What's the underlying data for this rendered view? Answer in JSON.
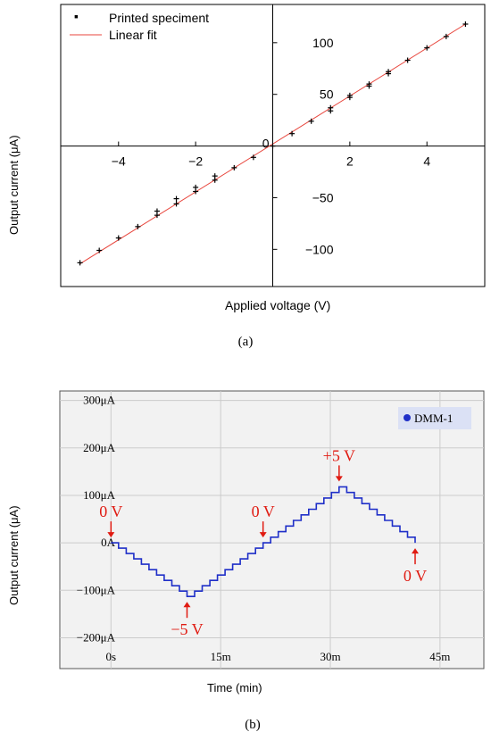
{
  "colors": {
    "fit_line": "#e8453c",
    "scatter": "#000000",
    "trace": "#1f2fc8",
    "annotation": "#e01b12",
    "plot_b_bg": "#f2f2f2",
    "legend_b_bg": "#dbe1f5",
    "grid": "#cccccc"
  },
  "caption_a": "(a)",
  "caption_b": "(b)",
  "chart_data": [
    {
      "type": "scatter",
      "xlabel": "Applied voltage (V)",
      "ylabel": "Output current (μA)",
      "xlim": [
        -5.5,
        5.5
      ],
      "ylim": [
        -136,
        137
      ],
      "xticks": [
        -4,
        -2,
        0,
        2,
        4
      ],
      "xtick_labels": [
        "−4",
        "−2",
        "0",
        "2",
        "4"
      ],
      "yticks": [
        -100,
        -50,
        0,
        50,
        100
      ],
      "ytick_labels": [
        "−100",
        "−50",
        "0",
        "50",
        "100"
      ],
      "axes_through_origin": true,
      "grid": false,
      "legend_position": "top-left",
      "legend": [
        "Printed speciment",
        "Linear fit"
      ],
      "series": [
        {
          "name": "Printed speciment",
          "kind": "points",
          "x": [
            -5,
            -4.5,
            -4,
            -3.5,
            -3,
            -3,
            -2.5,
            -2.5,
            -2,
            -2,
            -1.5,
            -1.5,
            -1,
            -0.5,
            0,
            0.5,
            1,
            1.5,
            1.5,
            2,
            2,
            2.5,
            2.5,
            3,
            3,
            3.5,
            4,
            4.5,
            5
          ],
          "y": [
            -113,
            -101,
            -89,
            -78,
            -63,
            -67,
            -51,
            -56,
            -40,
            -44,
            -29,
            -33,
            -21,
            -11,
            0,
            12,
            24,
            34,
            37,
            47,
            49,
            58,
            60,
            70,
            72,
            83,
            95,
            106,
            118
          ]
        },
        {
          "name": "Linear fit",
          "kind": "line",
          "x": [
            -5,
            5
          ],
          "y": [
            -114,
            118
          ]
        }
      ]
    },
    {
      "type": "line",
      "xlabel": "Time (min)",
      "ylabel": "Output current (μA)",
      "xlim": [
        -7,
        51
      ],
      "ylim": [
        -265,
        320
      ],
      "xticks": [
        0,
        15,
        30,
        45
      ],
      "xtick_labels": [
        "0s",
        "15m",
        "30m",
        "45m"
      ],
      "yticks": [
        -200,
        -100,
        0,
        100,
        200,
        300
      ],
      "ytick_labels": [
        "−200μA",
        "−100μA",
        "0A",
        "100μA",
        "200μA",
        "300μA"
      ],
      "grid": true,
      "legend_position": "top-right",
      "legend": [
        "DMM-1"
      ],
      "series": [
        {
          "name": "DMM-1",
          "kind": "staircase",
          "step_duration": 1.0,
          "x": [
            0,
            10.4,
            20.8,
            31.2,
            41.6
          ],
          "y": [
            0,
            -113,
            0,
            118,
            0
          ],
          "steps_per_segment": 10
        }
      ],
      "annotations": [
        {
          "text": "0 V",
          "x": 0,
          "y": 0,
          "label_pos": "above"
        },
        {
          "text": "−5 V",
          "x": 10.4,
          "y": -113,
          "label_pos": "below"
        },
        {
          "text": "0 V",
          "x": 20.8,
          "y": 0,
          "label_pos": "above"
        },
        {
          "text": "+5 V",
          "x": 31.2,
          "y": 118,
          "label_pos": "above"
        },
        {
          "text": "0 V",
          "x": 41.6,
          "y": 0,
          "label_pos": "below"
        }
      ]
    }
  ]
}
